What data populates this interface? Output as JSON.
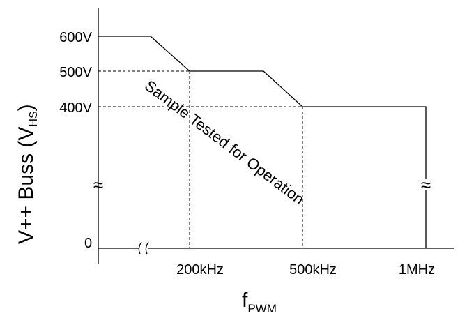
{
  "chart_data": {
    "type": "line",
    "title": "",
    "xlabel": {
      "main": "f",
      "sub": "PWM"
    },
    "ylabel": {
      "main": "V++ Buss (V",
      "sub": "HS",
      "close": ")"
    },
    "x_tick_labels": [
      "200kHz",
      "500kHz",
      "1MHz"
    ],
    "y_tick_labels": [
      "600V",
      "500V",
      "400V",
      "0"
    ],
    "axis_break_symbol": "≈",
    "annotation": "Sample Tested for Operation",
    "series": [
      {
        "points": [
          {
            "x": "0",
            "y": 600
          },
          {
            "x": "200kHz",
            "y": 500
          },
          {
            "x": "500kHz",
            "y": 400
          },
          {
            "x": "1MHz",
            "y": 400
          },
          {
            "x": "1MHz",
            "y": 0
          }
        ]
      }
    ],
    "reference_lines": [
      {
        "at_x": "200kHz",
        "at_y": 500,
        "style": "dashed"
      },
      {
        "at_x": "500kHz",
        "at_y": 400,
        "style": "dashed"
      }
    ],
    "grid": false,
    "legend": "none"
  }
}
